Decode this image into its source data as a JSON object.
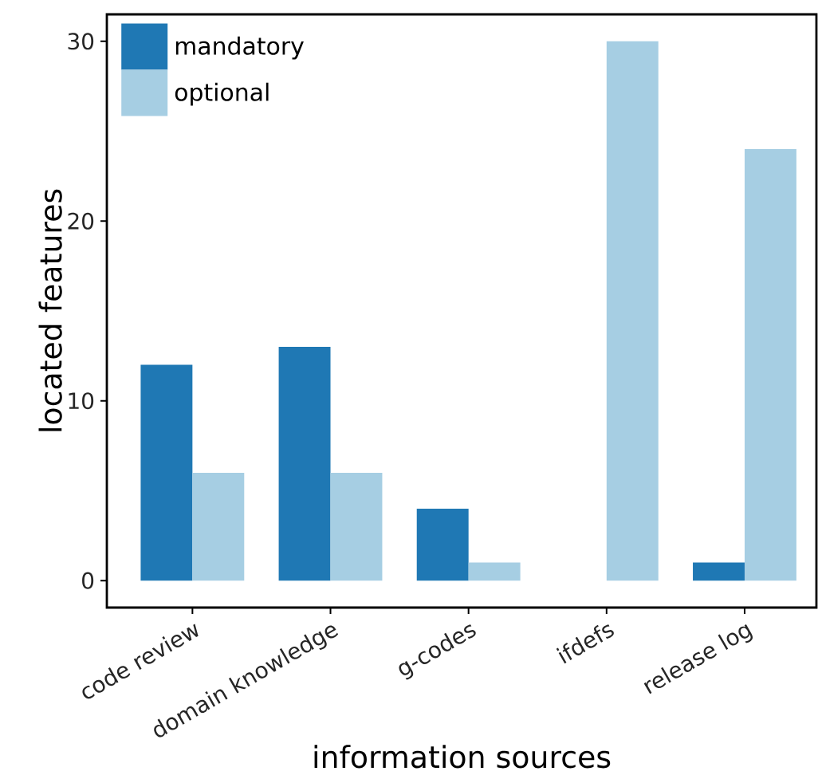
{
  "chart_data": {
    "type": "bar",
    "xlabel": "information sources",
    "ylabel": "located features",
    "categories": [
      "code review",
      "domain knowledge",
      "g-codes",
      "ifdefs",
      "release log"
    ],
    "series": [
      {
        "name": "mandatory",
        "color": "#1f78b4",
        "values": [
          12,
          13,
          4,
          0,
          1
        ]
      },
      {
        "name": "optional",
        "color": "#a6cee3",
        "values": [
          6,
          6,
          1,
          30,
          24
        ]
      }
    ],
    "ylim": [
      -1.5,
      31.5
    ],
    "yticks": [
      0,
      10,
      20,
      30
    ],
    "grid": false,
    "legend": "top left"
  }
}
